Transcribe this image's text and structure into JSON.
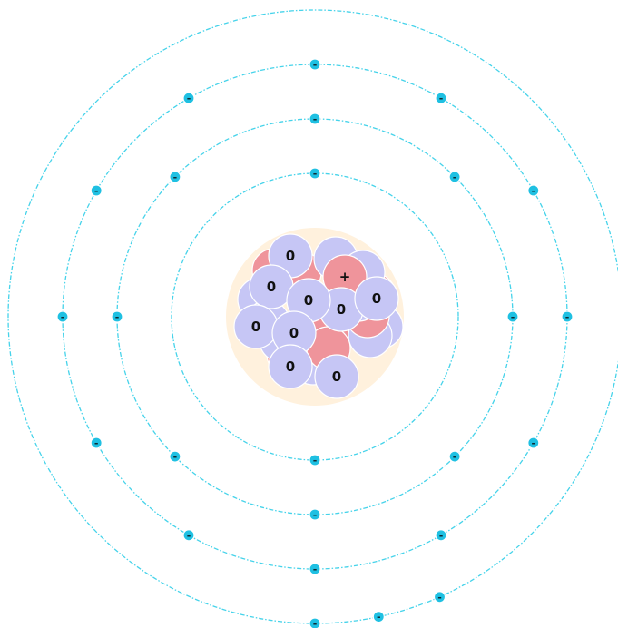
{
  "colors": {
    "orbit": "#46d3ea",
    "electron": "#1fc0e2",
    "proton": "#ef949b",
    "neutron": "#c6c6f5",
    "nucleus_glow": "#fff1dd"
  },
  "labels": {
    "electron": "-",
    "proton": "+",
    "neutron": "0"
  },
  "shells": [
    {
      "name": "shell-1",
      "electron_count": 2
    },
    {
      "name": "shell-2",
      "electron_count": 8
    },
    {
      "name": "shell-3",
      "electron_count": 12
    },
    {
      "name": "shell-4",
      "electron_count": 3
    }
  ],
  "nucleus": {
    "protons": 12,
    "neutrons": 18
  }
}
